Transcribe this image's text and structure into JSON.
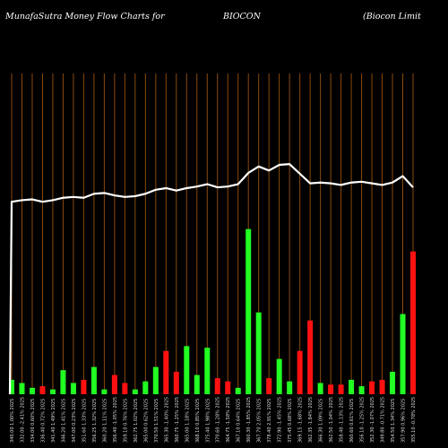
{
  "header": {
    "left": "MunafaSutra  Money Flow  Charts for",
    "symbol": "BIOCON",
    "company": "(Biocon  Limit"
  },
  "colors": {
    "background": "#000000",
    "grid": "#8B4A0F",
    "up": "#22ff22",
    "down": "#ff1111",
    "line": "#ffffff"
  },
  "chart_data": {
    "type": "bar",
    "categories": [
      "340.00 1.00% 2025",
      "332.00 -2.41% 2025",
      "334.00 0.60% 2025",
      "336.40 0.72% 2025",
      "341.40 1.49% 2025",
      "346.20 1.41% 2025",
      "347.00 0.23% 2025",
      "351.60 1.33% 2025",
      "356.25 1.32% 2025",
      "360.20 1.11% 2025",
      "356.40 -1.05% 2025",
      "359.10 0.76% 2025",
      "362.75 1.02% 2025",
      "365.00 0.62% 2025",
      "370.50 1.51% 2025",
      "365.30 -1.40% 2025",
      "360.75 -1.25% 2025",
      "365.00 1.18% 2025",
      "368.10 0.85% 2025",
      "375.40 1.98% 2025",
      "370.60 -1.28% 2025",
      "364.75 -1.58% 2025",
      "367.10 0.64% 2025",
      "360.30 -1.85% 2025",
      "367.70 2.05% 2025",
      "378.40 2.91% 2025",
      "372.90 -1.45% 2025",
      "375.45 0.68% 2025",
      "369.15 -1.68% 2025",
      "362.35 -1.84% 2025",
      "366.30 1.09% 2025",
      "362.50 -1.04% 2025",
      "358.40 -1.13% 2025",
      "360.60 0.61% 2025",
      "356.10 -1.25% 2025",
      "352.30 -1.07% 2025",
      "349.80 -0.71% 2025",
      "354.50 1.34% 2025",
      "357.90 0.96% 2025",
      "355.10 -0.78% 2025"
    ],
    "series": [
      {
        "values": [
          9,
          7,
          4,
          5,
          3,
          15,
          7,
          9,
          17,
          3,
          12,
          7,
          3,
          8,
          17,
          27,
          14,
          30,
          12,
          29,
          10,
          8,
          4,
          103,
          51,
          10,
          22,
          8,
          27,
          46,
          7,
          6,
          6,
          9,
          5,
          8,
          9,
          14,
          50,
          89
        ],
        "direction": [
          "up",
          "up",
          "up",
          "down",
          "up",
          "up",
          "up",
          "down",
          "up",
          "up",
          "down",
          "down",
          "up",
          "up",
          "up",
          "down",
          "down",
          "up",
          "up",
          "up",
          "down",
          "down",
          "up",
          "up",
          "up",
          "down",
          "up",
          "up",
          "down",
          "down",
          "up",
          "down",
          "down",
          "up",
          "up",
          "down",
          "down",
          "up",
          "up",
          "down"
        ]
      },
      {
        "values": [
          120,
          121,
          121.5,
          120,
          121,
          122.5,
          123,
          122.5,
          125,
          125.5,
          124,
          123,
          123.5,
          125,
          127.5,
          128.5,
          127,
          128.5,
          129.5,
          131,
          129,
          129.5,
          131,
          138,
          142,
          139.5,
          143,
          143.5,
          137.5,
          131.5,
          132,
          131.5,
          130.5,
          132,
          132.5,
          131.5,
          130.5,
          132,
          136,
          129
        ]
      }
    ],
    "ylim": [
      0,
      200
    ],
    "grid": true
  }
}
